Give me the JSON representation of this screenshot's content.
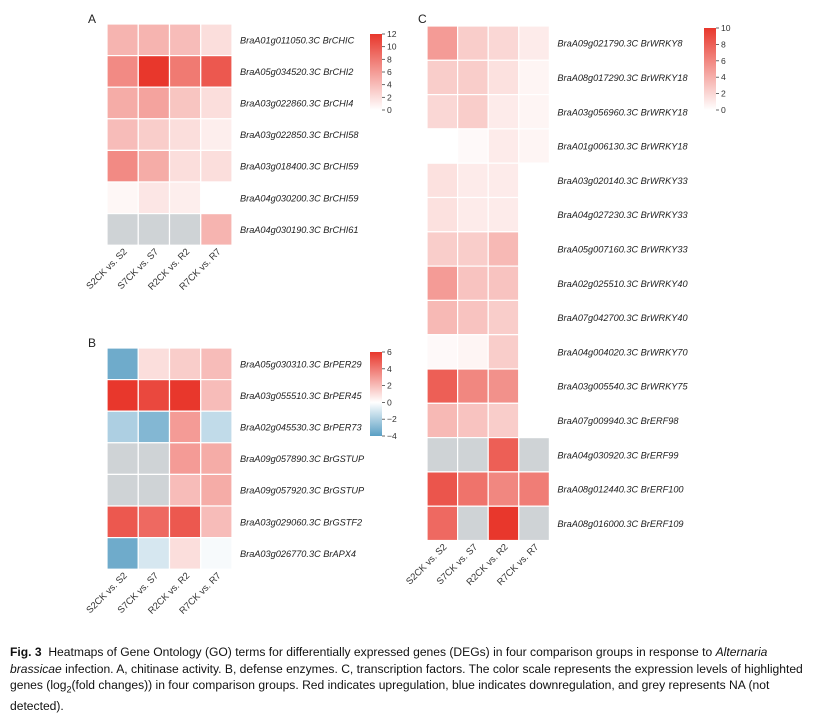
{
  "figure_label": "Fig. 3",
  "caption": {
    "t1": "Heatmaps of Gene Ontology (GO) terms for differentially expressed genes (DEGs) in four comparison groups in response to",
    "t2_italic": "Alternaria brassicae",
    "t3": "infection.  A, chitinase activity.  B, defense enzymes.  C, transcription factors.  The color scale represents the expression levels of highlighted genes (log",
    "t4_sub": "2",
    "t5": "(fold changes)) in four comparison groups.  Red indicates upregulation, blue indicates downregulation, and grey represents NA (not detected)."
  },
  "colors": {
    "red": "#e8372c",
    "blue": "#5a9fc4",
    "na": "#cfd3d6",
    "white": "#ffffff"
  },
  "chart_data": [
    {
      "type": "heatmap",
      "panel": "A",
      "columns": [
        "S2CK vs. S2",
        "S7CK vs. S7",
        "R2CK vs. R2",
        "R7CK vs. R7"
      ],
      "rows": [
        "BraA01g011050.3C BrCHIC",
        "BraA05g034520.3C BrCHI2",
        "BraA03g022860.3C BrCHI4",
        "BraA03g022850.3C BrCHI58",
        "BraA03g018400.3C BrCHI59",
        "BraA04g030200.3C BrCHI59",
        "BraA04g030190.3C BrCHI61"
      ],
      "values": [
        [
          4.5,
          4.5,
          4,
          2
        ],
        [
          7,
          12,
          8,
          10
        ],
        [
          5,
          5.5,
          3.5,
          2
        ],
        [
          4,
          3,
          2,
          1
        ],
        [
          7,
          5,
          2,
          2
        ],
        [
          0.5,
          1.5,
          1,
          0
        ],
        [
          null,
          null,
          null,
          4.5
        ]
      ],
      "scale": {
        "min": 0,
        "max": 12,
        "ticks": [
          12,
          10,
          8,
          6,
          4,
          2,
          0
        ]
      }
    },
    {
      "type": "heatmap",
      "panel": "B",
      "columns": [
        "S2CK vs. S2",
        "S7CK vs. S7",
        "R2CK vs. R2",
        "R7CK vs. R7"
      ],
      "rows": [
        "BraA05g030310.3C BrPER29",
        "BraA03g055510.3C BrPER45",
        "BraA02g045530.3C BrPER73",
        "BraA09g057890.3C BrGSTUP",
        "BraA09g057920.3C BrGSTUP",
        "BraA03g029060.3C BrGSTF2",
        "BraA03g026770.3C BrAPX4"
      ],
      "values": [
        [
          -3.5,
          1,
          1.5,
          2
        ],
        [
          6,
          5.5,
          6,
          2
        ],
        [
          -2,
          -3,
          3,
          -1.5
        ],
        [
          null,
          null,
          3,
          2.5
        ],
        [
          null,
          null,
          2,
          2.5
        ],
        [
          5,
          4.5,
          5,
          2
        ],
        [
          -3.5,
          -1,
          1,
          -0.2
        ]
      ],
      "scale": {
        "min": -4,
        "max": 6,
        "ticks": [
          6,
          4,
          2,
          0,
          -2,
          -4
        ]
      }
    },
    {
      "type": "heatmap",
      "panel": "C",
      "columns": [
        "S2CK vs. S2",
        "S7CK vs. S7",
        "R2CK vs. R2",
        "R7CK vs. R7"
      ],
      "rows": [
        "BraA09g021790.3C BrWRKY8",
        "BraA08g017290.3C BrWRKY18",
        "BraA03g056960.3C BrWRKY18",
        "BraA01g006130.3C BrWRKY18",
        "BraA03g020140.3C BrWRKY33",
        "BraA04g027230.3C BrWRKY33",
        "BraA05g007160.3C BrWRKY33",
        "BraA02g025510.3C BrWRKY40",
        "BraA07g042700.3C BrWRKY40",
        "BraA04g004020.3C BrWRKY70",
        "BraA03g005540.3C BrWRKY75",
        "BraA07g009940.3C BrERF98",
        "BraA04g030920.3C BrERF99",
        "BraA08g012440.3C BrERF100",
        "BraA08g016000.3C BrERF109"
      ],
      "values": [
        [
          5,
          2.5,
          2,
          1
        ],
        [
          2.5,
          2.5,
          1.5,
          0.5
        ],
        [
          2,
          2.5,
          1,
          0.5
        ],
        [
          0,
          0.3,
          1,
          0.5
        ],
        [
          1.5,
          1,
          1,
          0
        ],
        [
          1.5,
          1,
          1,
          0
        ],
        [
          2.5,
          2.5,
          3.5,
          0
        ],
        [
          5,
          3,
          3,
          0
        ],
        [
          3.5,
          3,
          2.5,
          0
        ],
        [
          0.3,
          0.5,
          2.5,
          0
        ],
        [
          8,
          6,
          5.5,
          0
        ],
        [
          3.5,
          3,
          2.5,
          0
        ],
        [
          null,
          null,
          8,
          null
        ],
        [
          8.5,
          7,
          6,
          6.5
        ],
        [
          7.5,
          null,
          10,
          null
        ]
      ],
      "scale": {
        "min": 0,
        "max": 10,
        "ticks": [
          10,
          8,
          6,
          4,
          2,
          0
        ]
      }
    }
  ]
}
